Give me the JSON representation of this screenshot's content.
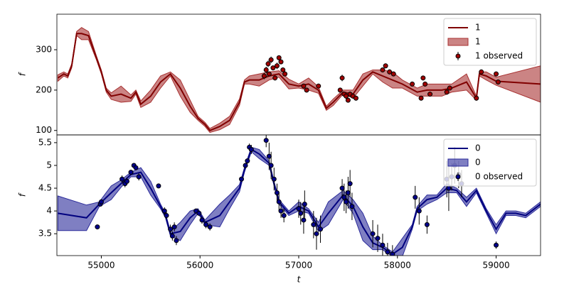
{
  "chart_data": [
    {
      "type": "gp",
      "ylabel": "f",
      "xlim": [
        54550,
        59450
      ],
      "ylim": [
        89,
        388
      ],
      "yticks": [
        100,
        200,
        300
      ],
      "legend": "upper right",
      "line": {
        "name": "1",
        "color": "#800000",
        "x": [
          54560,
          54620,
          54660,
          54700,
          54750,
          54800,
          54870,
          54950,
          55000,
          55050,
          55100,
          55200,
          55300,
          55350,
          55400,
          55500,
          55600,
          55700,
          55800,
          55900,
          55980,
          56050,
          56100,
          56200,
          56300,
          56400,
          56450,
          56500,
          56600,
          56700,
          56800,
          56900,
          57000,
          57100,
          57200,
          57280,
          57350,
          57450,
          57550,
          57650,
          57750,
          57850,
          57950,
          58050,
          58200,
          58300,
          58450,
          58550,
          58700,
          58800,
          58830,
          58900,
          59000,
          59450
        ],
        "values": [
          230,
          240,
          235,
          260,
          340,
          340,
          335,
          280,
          245,
          200,
          185,
          190,
          180,
          195,
          165,
          185,
          220,
          240,
          205,
          160,
          130,
          115,
          100,
          110,
          125,
          170,
          220,
          225,
          225,
          235,
          240,
          215,
          210,
          215,
          200,
          155,
          170,
          195,
          190,
          225,
          245,
          235,
          225,
          215,
          195,
          200,
          200,
          205,
          220,
          180,
          240,
          235,
          222,
          215
        ]
      },
      "band": {
        "name": "1",
        "color": "#a83232",
        "lower": [
          222,
          235,
          230,
          255,
          335,
          325,
          325,
          275,
          240,
          195,
          177,
          170,
          172,
          190,
          157,
          170,
          205,
          235,
          185,
          145,
          125,
          110,
          95,
          102,
          115,
          162,
          215,
          215,
          210,
          225,
          232,
          203,
          205,
          200,
          192,
          150,
          162,
          190,
          180,
          210,
          240,
          220,
          205,
          205,
          185,
          185,
          185,
          195,
          200,
          175,
          235,
          225,
          212,
          170
        ],
        "upper": [
          238,
          245,
          240,
          265,
          345,
          355,
          345,
          285,
          250,
          205,
          193,
          210,
          188,
          200,
          173,
          200,
          235,
          245,
          225,
          175,
          135,
          120,
          105,
          118,
          135,
          178,
          225,
          235,
          240,
          245,
          248,
          227,
          215,
          230,
          208,
          160,
          178,
          200,
          200,
          240,
          250,
          250,
          245,
          225,
          205,
          215,
          215,
          215,
          240,
          185,
          245,
          245,
          232,
          260
        ]
      },
      "points": {
        "name": "1 observed",
        "color": "#a00000",
        "x": [
          56650,
          56670,
          56690,
          56700,
          56720,
          56740,
          56760,
          56780,
          56800,
          56820,
          56840,
          56860,
          57050,
          57080,
          57200,
          57420,
          57440,
          57460,
          57480,
          57500,
          57520,
          57550,
          57580,
          57850,
          57880,
          57920,
          57960,
          58150,
          58240,
          58260,
          58280,
          58330,
          58500,
          58530,
          58800,
          58850,
          59000,
          59020
        ],
        "values": [
          235,
          250,
          265,
          240,
          275,
          255,
          230,
          260,
          280,
          270,
          250,
          240,
          210,
          200,
          210,
          200,
          230,
          190,
          185,
          175,
          190,
          185,
          180,
          250,
          260,
          245,
          240,
          215,
          180,
          230,
          215,
          190,
          195,
          205,
          180,
          245,
          240,
          220
        ],
        "errors": [
          8,
          8,
          8,
          6,
          8,
          6,
          6,
          8,
          6,
          6,
          6,
          6,
          6,
          6,
          6,
          6,
          8,
          6,
          6,
          6,
          6,
          6,
          6,
          6,
          6,
          6,
          6,
          6,
          6,
          6,
          6,
          6,
          6,
          6,
          6,
          6,
          6,
          6
        ]
      }
    },
    {
      "type": "gp",
      "ylabel": "f",
      "xlabel": "t",
      "xlim": [
        54550,
        59450
      ],
      "ylim": [
        3.02,
        5.67
      ],
      "yticks": [
        3.5,
        4.0,
        4.5,
        5.0,
        5.5
      ],
      "xticks": [
        55000,
        56000,
        57000,
        58000,
        59000
      ],
      "legend": "upper right",
      "line": {
        "name": "0",
        "color": "#00007f",
        "x": [
          54560,
          54850,
          54980,
          55100,
          55200,
          55300,
          55400,
          55500,
          55600,
          55650,
          55700,
          55800,
          55900,
          55980,
          56050,
          56200,
          56300,
          56400,
          56450,
          56520,
          56600,
          56700,
          56750,
          56800,
          56900,
          57000,
          57100,
          57200,
          57300,
          57450,
          57550,
          57650,
          57750,
          57850,
          57950,
          58050,
          58150,
          58200,
          58300,
          58400,
          58500,
          58600,
          58700,
          58800,
          58900,
          59000,
          59100,
          59200,
          59300,
          59450
        ],
        "values": [
          3.95,
          3.85,
          4.15,
          4.4,
          4.6,
          4.8,
          4.85,
          4.5,
          4.1,
          3.9,
          3.5,
          3.55,
          3.85,
          4.0,
          3.75,
          3.9,
          4.2,
          4.5,
          4.9,
          5.35,
          5.25,
          5.05,
          4.6,
          4.2,
          3.95,
          4.1,
          4.0,
          3.65,
          3.95,
          4.35,
          4.1,
          3.65,
          3.3,
          3.2,
          3.05,
          3.2,
          3.65,
          4.05,
          4.25,
          4.3,
          4.5,
          4.45,
          4.2,
          4.45,
          4.0,
          3.6,
          3.95,
          3.95,
          3.9,
          4.15
        ]
      },
      "band": {
        "name": "0",
        "color": "#2a2a9a",
        "lower": [
          3.57,
          3.57,
          4.1,
          4.25,
          4.52,
          4.75,
          4.75,
          4.35,
          4.05,
          3.85,
          3.45,
          3.35,
          3.7,
          3.95,
          3.7,
          3.65,
          4.05,
          4.42,
          4.85,
          5.3,
          5.15,
          5.0,
          4.55,
          4.15,
          3.9,
          4.0,
          3.95,
          3.55,
          3.7,
          4.25,
          3.95,
          3.35,
          3.15,
          3.15,
          3.0,
          3.0,
          3.6,
          4.0,
          4.15,
          4.25,
          4.4,
          4.4,
          4.1,
          4.4,
          3.95,
          3.5,
          3.9,
          3.9,
          3.85,
          4.1
        ],
        "upper": [
          4.33,
          4.13,
          4.2,
          4.55,
          4.68,
          4.85,
          4.95,
          4.65,
          4.15,
          3.95,
          3.55,
          3.75,
          4.0,
          4.05,
          3.8,
          4.15,
          4.35,
          4.58,
          4.95,
          5.4,
          5.35,
          5.1,
          4.65,
          4.25,
          4.0,
          4.2,
          4.05,
          3.75,
          4.2,
          4.45,
          4.25,
          3.95,
          3.45,
          3.25,
          3.1,
          3.4,
          3.7,
          4.1,
          4.35,
          4.35,
          4.6,
          4.5,
          4.3,
          4.5,
          4.05,
          3.7,
          4.0,
          4.0,
          3.95,
          4.2
        ]
      },
      "points": {
        "name": "0 observed",
        "color": "#00008b",
        "x": [
          54960,
          54990,
          55000,
          55210,
          55240,
          55260,
          55300,
          55330,
          55350,
          55380,
          55580,
          55640,
          55660,
          55700,
          55720,
          55740,
          55760,
          55960,
          55990,
          56020,
          56060,
          56100,
          56420,
          56460,
          56480,
          56500,
          56520,
          56670,
          56700,
          56720,
          56750,
          56780,
          56800,
          56820,
          56850,
          57000,
          57020,
          57050,
          57060,
          57150,
          57180,
          57220,
          57440,
          57460,
          57480,
          57500,
          57520,
          57540,
          57750,
          57800,
          57850,
          57900,
          57950,
          58180,
          58220,
          58300,
          58500,
          58520,
          58550,
          58580,
          58620,
          58650,
          59000
        ],
        "values": [
          3.65,
          4.15,
          4.2,
          4.7,
          4.6,
          4.65,
          4.85,
          5.0,
          4.95,
          4.75,
          4.55,
          4.0,
          3.9,
          3.6,
          3.45,
          3.65,
          3.35,
          4.0,
          3.95,
          3.8,
          3.7,
          3.65,
          4.7,
          5.0,
          5.1,
          5.4,
          5.35,
          5.55,
          5.2,
          5.0,
          4.7,
          4.4,
          4.2,
          4.0,
          3.9,
          4.05,
          3.95,
          3.8,
          4.15,
          3.7,
          3.5,
          3.6,
          4.5,
          4.3,
          4.2,
          4.4,
          4.6,
          4.1,
          3.5,
          3.4,
          3.25,
          3.1,
          3.05,
          4.3,
          4.0,
          3.7,
          4.7,
          4.5,
          4.75,
          5.0,
          4.8,
          4.6,
          3.25
        ],
        "errors": [
          0.05,
          0.05,
          0.05,
          0.08,
          0.08,
          0.08,
          0.05,
          0.05,
          0.05,
          0.08,
          0.05,
          0.08,
          0.08,
          0.1,
          0.1,
          0.1,
          0.1,
          0.05,
          0.05,
          0.08,
          0.08,
          0.08,
          0.05,
          0.05,
          0.05,
          0.08,
          0.1,
          0.15,
          0.3,
          0.3,
          0.25,
          0.2,
          0.2,
          0.15,
          0.15,
          0.2,
          0.25,
          0.3,
          0.3,
          0.3,
          0.35,
          0.3,
          0.2,
          0.3,
          0.25,
          0.35,
          0.3,
          0.3,
          0.3,
          0.3,
          0.25,
          0.2,
          0.2,
          0.25,
          0.3,
          0.2,
          0.4,
          0.5,
          0.3,
          0.4,
          0.3,
          0.3,
          0.08
        ]
      }
    }
  ]
}
